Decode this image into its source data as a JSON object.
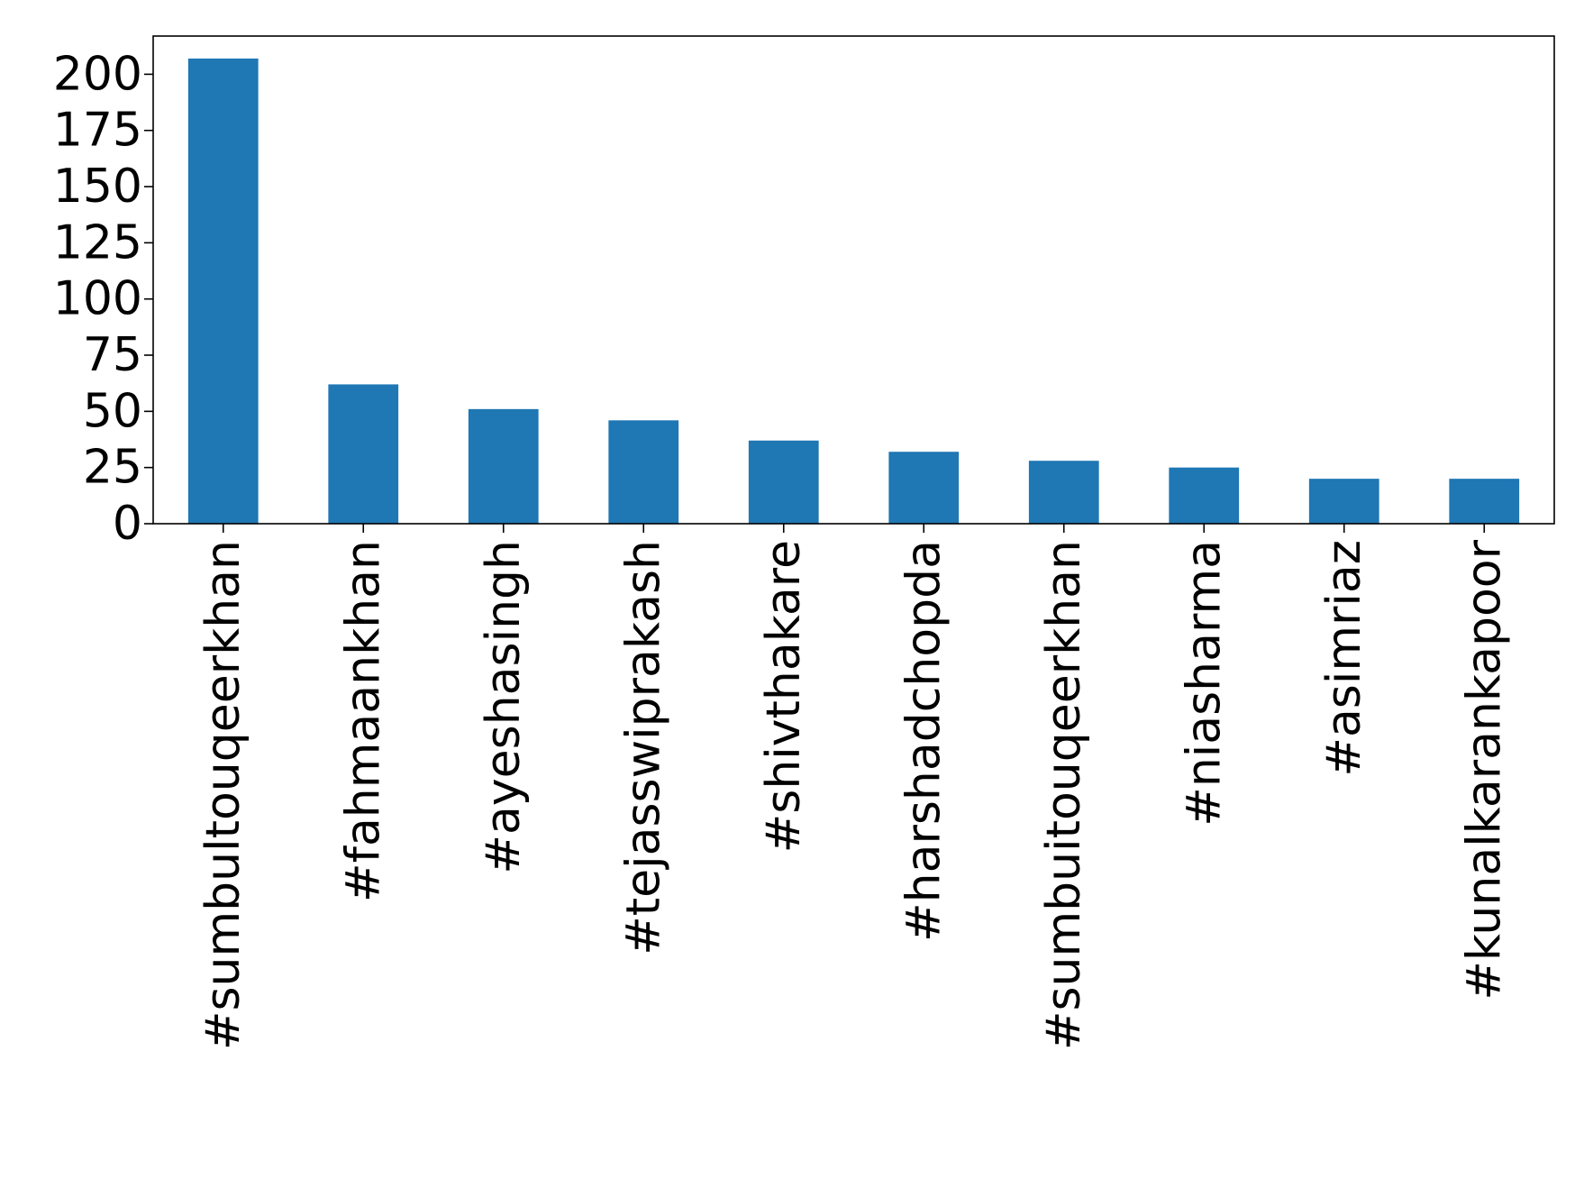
{
  "chart_data": {
    "type": "bar",
    "title": "",
    "xlabel": "",
    "ylabel": "",
    "categories": [
      "#sumbultouqeerkhan",
      "#fahmaankhan",
      "#ayeshasingh",
      "#tejasswiprakash",
      "#shivthakare",
      "#harshadchopda",
      "#sumbuitouqeerkhan",
      "#niasharma",
      "#asimriaz",
      "#kunalkarankapoor"
    ],
    "values": [
      207,
      62,
      51,
      46,
      37,
      32,
      28,
      25,
      20,
      20
    ],
    "ylim": [
      0,
      217
    ],
    "yticks": [
      0,
      25,
      50,
      75,
      100,
      125,
      150,
      175,
      200
    ],
    "grid": false,
    "legend": "none",
    "bar_color": "#1f77b4"
  }
}
